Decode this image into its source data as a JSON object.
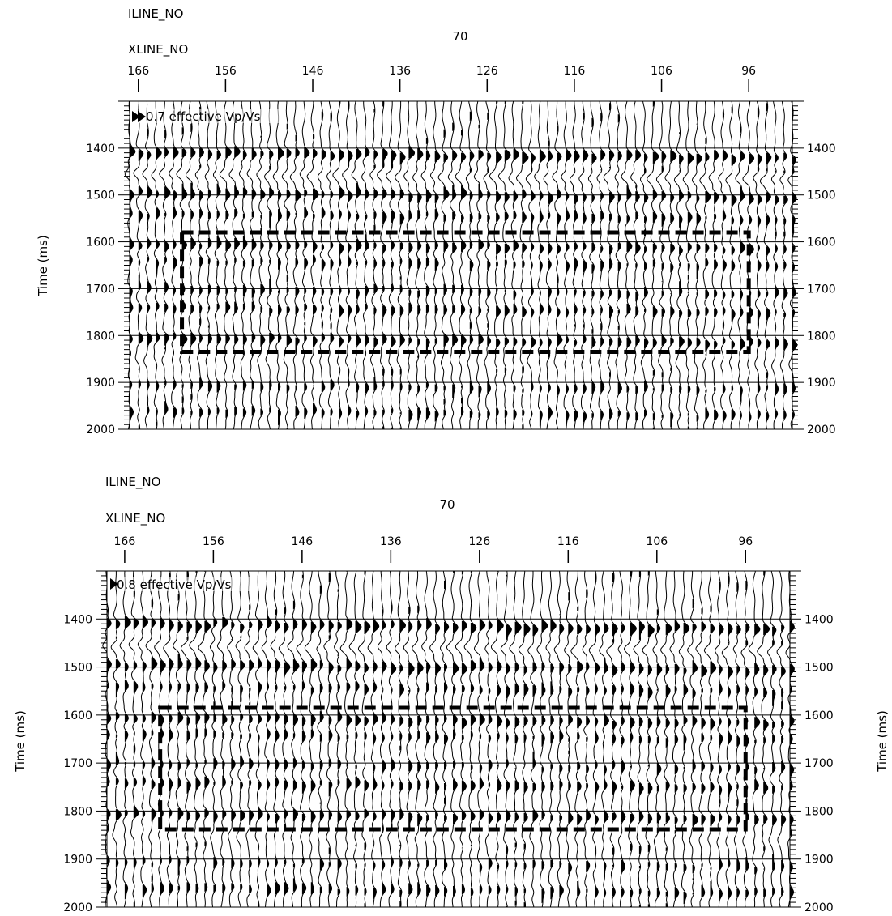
{
  "chart_data": [
    {
      "type": "seismic-wiggle",
      "iline_label": "ILINE_NO",
      "iline_value": "70",
      "xline_label": "XLINE_NO",
      "x_ticks": [
        "166",
        "156",
        "146",
        "136",
        "126",
        "116",
        "106",
        "96"
      ],
      "x_range": [
        167,
        91
      ],
      "y_label": "Time (ms)",
      "y_ticks": [
        "1400",
        "1500",
        "1600",
        "1700",
        "1800",
        "1900",
        "2000"
      ],
      "y_range": [
        1300,
        2000
      ],
      "annotation": "0.7 effective Vp/Vs",
      "highlight_box": {
        "xline": [
          161,
          96
        ],
        "time": [
          1580,
          1835
        ]
      }
    },
    {
      "type": "seismic-wiggle",
      "iline_label": "ILINE_NO",
      "iline_value": "70",
      "xline_label": "XLINE_NO",
      "x_ticks": [
        "166",
        "156",
        "146",
        "136",
        "126",
        "116",
        "106",
        "96"
      ],
      "x_range": [
        168,
        91
      ],
      "y_label": "Time (ms)",
      "y_ticks": [
        "1400",
        "1500",
        "1600",
        "1700",
        "1800",
        "1900",
        "2000"
      ],
      "y_range": [
        1300,
        2000
      ],
      "annotation": "0.8 effective Vp/Vs",
      "highlight_box": {
        "xline": [
          162,
          96
        ],
        "time": [
          1585,
          1838
        ]
      }
    }
  ]
}
